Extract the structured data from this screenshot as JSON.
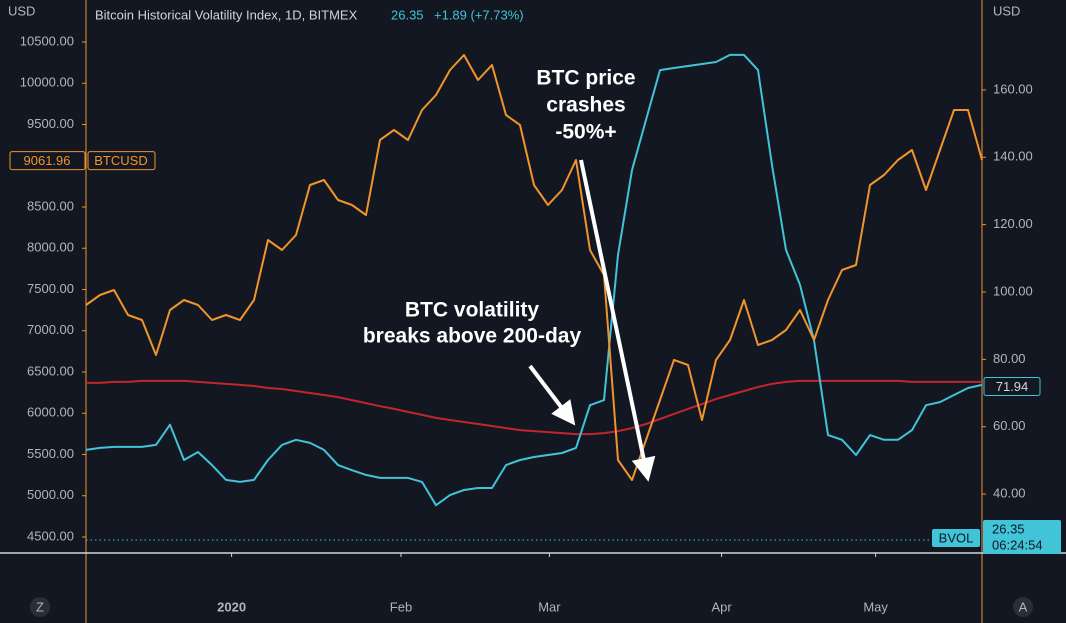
{
  "chart_data": {
    "type": "line",
    "title": "Bitcoin Historical Volatility Index, 1D, BITMEX",
    "last_value": 26.35,
    "change": "+1.89 (+7.73%)",
    "y_unit": "USD",
    "y2_unit": "USD",
    "annotations": [
      {
        "lines": [
          "BTC price",
          "crashes",
          "-50%+"
        ]
      },
      {
        "lines": [
          "BTC volatility",
          "breaks above 200-day"
        ]
      }
    ],
    "xlim": [
      0,
      64
    ],
    "xticks": [
      {
        "value": 10.4,
        "label": "2020"
      },
      {
        "value": 22.5,
        "label": "Feb"
      },
      {
        "value": 33.1,
        "label": "Mar"
      },
      {
        "value": 45.4,
        "label": "Apr"
      },
      {
        "value": 56.4,
        "label": "May"
      }
    ],
    "ylim": [
      4306,
      11009
    ],
    "yticks": [
      {
        "value": 4500,
        "label": "4500.00"
      },
      {
        "value": 5000,
        "label": "5000.00"
      },
      {
        "value": 5500,
        "label": "5500.00"
      },
      {
        "value": 6000,
        "label": "6000.00"
      },
      {
        "value": 6500,
        "label": "6500.00"
      },
      {
        "value": 7000,
        "label": "7000.00"
      },
      {
        "value": 7500,
        "label": "7500.00"
      },
      {
        "value": 8000,
        "label": "8000.00"
      },
      {
        "value": 8500,
        "label": "8500.00"
      },
      {
        "value": 9000,
        "label": "9000.00"
      },
      {
        "value": 9500,
        "label": "9500.00"
      },
      {
        "value": 10000,
        "label": "10000.00"
      },
      {
        "value": 10500,
        "label": "10500.00"
      }
    ],
    "y2lim": [
      22.5,
      186.7
    ],
    "y2ticks": [
      {
        "value": 40,
        "label": "40.00"
      },
      {
        "value": 60,
        "label": "60.00"
      },
      {
        "value": 80,
        "label": "80.00"
      },
      {
        "value": 100,
        "label": "100.00"
      },
      {
        "value": 120,
        "label": "120.00"
      },
      {
        "value": 140,
        "label": "140.00"
      },
      {
        "value": 160,
        "label": "160.00"
      }
    ],
    "series": [
      {
        "name": "BTCUSD",
        "color": "#f0942b",
        "last": 9061.96,
        "values": [
          7312,
          7433,
          7494,
          7191,
          7130,
          6706,
          7252,
          7373,
          7312,
          7130,
          7191,
          7130,
          7373,
          8100,
          7979,
          8161,
          8767,
          8827,
          8585,
          8524,
          8403,
          9312,
          9433,
          9312,
          9676,
          9858,
          10161,
          10342,
          10039,
          10221,
          9615,
          9494,
          8767,
          8524,
          8706,
          9070,
          7979,
          7676,
          5433,
          5191,
          5676,
          6161,
          6646,
          6585,
          5918,
          6646,
          6888,
          7373,
          6827,
          6888,
          7009,
          7252,
          6888,
          7373,
          7736,
          7797,
          8767,
          8888,
          9070,
          9191,
          8706,
          9191,
          9676,
          9676,
          9070
        ]
      },
      {
        "name": "BVOL",
        "color": "#41c3d8",
        "axis": "y2",
        "last": 71.94,
        "time": "06:24:54",
        "values": [
          53.1,
          53.7,
          54,
          54,
          54,
          54.6,
          60.6,
          50.1,
          52.5,
          48.6,
          44.2,
          43.6,
          44.2,
          50.1,
          54.6,
          56.1,
          55.2,
          53.1,
          48.6,
          47.1,
          45.7,
          44.8,
          44.8,
          44.8,
          43.6,
          36.7,
          39.7,
          41.2,
          41.8,
          41.8,
          48.6,
          50.1,
          51,
          51.6,
          52.2,
          53.7,
          66.4,
          67.9,
          111,
          136.2,
          151.1,
          165.9,
          166.5,
          167.1,
          167.7,
          168.3,
          170.4,
          170.4,
          165.9,
          137.7,
          112.5,
          102.1,
          85.7,
          57.5,
          56.1,
          51.6,
          57.5,
          56.1,
          56.1,
          59,
          66.4,
          67.3,
          69.4,
          71.5,
          72.4
        ]
      },
      {
        "color": "#c0262d",
        "axis": "y2",
        "values": [
          73,
          73,
          73.3,
          73.3,
          73.6,
          73.6,
          73.6,
          73.6,
          73.3,
          73,
          72.7,
          72.4,
          72.1,
          71.5,
          71.2,
          70.6,
          70,
          69.4,
          68.8,
          67.9,
          67,
          66.1,
          65.3,
          64.4,
          63.5,
          62.6,
          62,
          61.4,
          60.8,
          60.2,
          59.6,
          59,
          58.7,
          58.4,
          58.1,
          57.8,
          57.8,
          58.1,
          58.7,
          59.6,
          60.8,
          62.3,
          63.8,
          65.3,
          66.7,
          68.2,
          69.4,
          70.6,
          71.8,
          72.7,
          73.3,
          73.6,
          73.6,
          73.6,
          73.6,
          73.6,
          73.6,
          73.6,
          73.6,
          73.3,
          73.3,
          73.3,
          73.3,
          73.3,
          73.3
        ]
      }
    ],
    "corner_buttons": [
      "Z",
      "A"
    ]
  }
}
